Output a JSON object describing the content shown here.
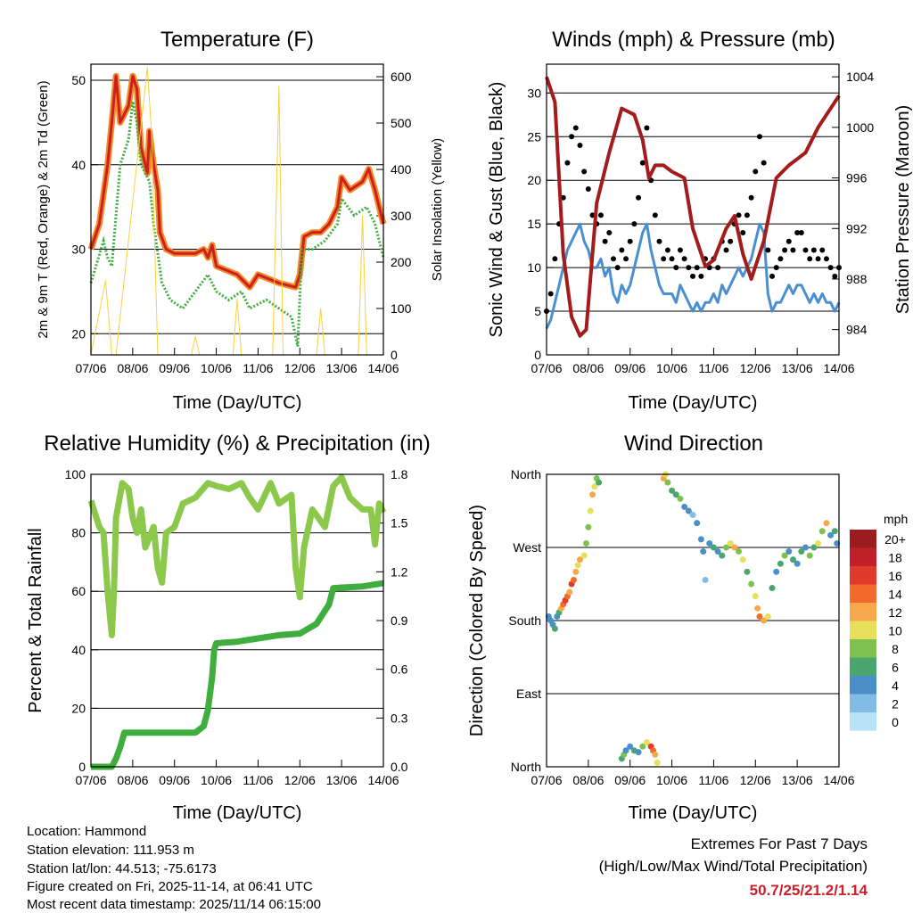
{
  "chart_data": [
    {
      "type": "line",
      "title": "Temperature (F)",
      "xlabel": "Time (Day/UTC)",
      "ylabel": "2m & 9m T (Red, Orange) & 2m Td (Green)",
      "ylabel_right": "Solar Insolation (Yellow)",
      "xticks": [
        "07/06",
        "08/06",
        "09/06",
        "10/06",
        "11/06",
        "12/06",
        "13/06",
        "14/06"
      ],
      "xlim": [
        0,
        7
      ],
      "ylim": [
        17.5,
        51.9
      ],
      "ylim_right": [
        0,
        627
      ],
      "yticks": [
        "20",
        "30",
        "40",
        "50"
      ],
      "yticks_right": [
        "0",
        "100",
        "200",
        "300",
        "400",
        "500",
        "600"
      ],
      "series": [
        {
          "name": "2m & 9m T",
          "color": "#cc1f1f",
          "halo": "#f28c28",
          "x": [
            0,
            0.2,
            0.4,
            0.5,
            0.6,
            0.7,
            0.9,
            1.0,
            1.1,
            1.2,
            1.35,
            1.4,
            1.5,
            1.6,
            1.65,
            1.8,
            2.0,
            2.5,
            2.7,
            2.8,
            2.9,
            3.0,
            3.5,
            3.8,
            4.0,
            4.5,
            4.9,
            5.0,
            5.1,
            5.3,
            5.5,
            5.7,
            5.9,
            6.0,
            6.2,
            6.5,
            6.65,
            6.8,
            7.0
          ],
          "y": [
            30,
            33,
            40,
            45,
            50.5,
            45,
            47,
            50.5,
            49,
            42,
            39,
            44,
            40,
            37,
            32,
            30,
            29.5,
            29.5,
            30,
            29,
            30.5,
            28,
            27,
            25.5,
            27,
            26,
            25.5,
            27,
            31.5,
            32,
            32,
            33,
            35,
            38.5,
            37,
            38,
            39.5,
            37,
            33
          ]
        },
        {
          "name": "2m Td",
          "color": "#3fae3f",
          "x": [
            0,
            0.3,
            0.4,
            0.5,
            0.7,
            0.9,
            1.0,
            1.1,
            1.2,
            1.4,
            1.5,
            1.7,
            1.9,
            2.2,
            2.5,
            2.8,
            3.0,
            3.3,
            3.6,
            3.8,
            4.2,
            4.5,
            4.8,
            4.95,
            5.05,
            5.3,
            5.6,
            5.9,
            6.0,
            6.3,
            6.6,
            6.8,
            7.0
          ],
          "y": [
            26,
            31,
            29,
            28,
            40,
            43,
            47.5,
            45,
            40,
            38,
            33,
            26,
            24,
            23,
            25,
            27,
            25,
            24,
            25,
            23,
            24,
            23,
            22,
            18.5,
            30,
            30,
            31,
            33,
            36,
            34,
            35,
            33,
            29
          ]
        },
        {
          "name": "Solar Insolation",
          "color": "#f7d23e",
          "axis": "right",
          "x": [
            0,
            0.35,
            0.5,
            0.6,
            1.35,
            1.45,
            1.6,
            2.4,
            2.5,
            2.6,
            3.4,
            3.5,
            3.6,
            4.35,
            4.5,
            4.6,
            5.4,
            5.5,
            5.6,
            6.4,
            6.5,
            6.6,
            7.0
          ],
          "y": [
            0,
            160,
            0,
            0,
            620,
            480,
            0,
            0,
            40,
            0,
            0,
            120,
            0,
            0,
            580,
            0,
            0,
            100,
            0,
            0,
            300,
            0,
            0
          ]
        }
      ]
    },
    {
      "type": "line",
      "title": "Winds (mph) & Pressure (mb)",
      "xlabel": "Time (Day/UTC)",
      "ylabel": "Sonic Wind & Gust (Blue, Black)",
      "ylabel_right": "Station Pressure (Maroon)",
      "xticks": [
        "07/06",
        "08/06",
        "09/06",
        "10/06",
        "11/06",
        "12/06",
        "13/06",
        "14/06"
      ],
      "xlim": [
        0,
        7
      ],
      "ylim": [
        0,
        33.3
      ],
      "ylim_right": [
        982,
        1005
      ],
      "yticks": [
        "0",
        "5",
        "10",
        "15",
        "20",
        "25",
        "30"
      ],
      "yticks_right": [
        "984",
        "988",
        "992",
        "996",
        "1000",
        "1004"
      ],
      "series": [
        {
          "name": "Sonic Wind",
          "color": "#4a90d0",
          "step": 0.1,
          "y": [
            3,
            4,
            6,
            8,
            10,
            12,
            13,
            14,
            15,
            13,
            12,
            10,
            10,
            11,
            9,
            10,
            7,
            6,
            8,
            7,
            8,
            10,
            12,
            14,
            15,
            12,
            10,
            8,
            7,
            7,
            7,
            6,
            8,
            7,
            6,
            5,
            6,
            5,
            6,
            6,
            7,
            6,
            8,
            7,
            8,
            9,
            10,
            9,
            10,
            11,
            13,
            15,
            14,
            7,
            5,
            6,
            6,
            7,
            8,
            7,
            8,
            8,
            7,
            6,
            7,
            6,
            7,
            6,
            6,
            5,
            6
          ]
        },
        {
          "name": "Gust",
          "color": "#000000",
          "step": 0.1,
          "y": [
            5,
            7,
            11,
            15,
            18,
            22,
            25,
            26,
            24,
            21,
            19,
            16,
            15,
            16,
            13,
            14,
            11,
            10,
            12,
            11,
            13,
            15,
            18,
            22,
            26,
            20,
            16,
            13,
            11,
            12,
            11,
            10,
            12,
            11,
            10,
            9,
            10,
            9,
            11,
            10,
            11,
            10,
            13,
            12,
            13,
            15,
            16,
            14,
            16,
            18,
            21,
            25,
            22,
            12,
            9,
            10,
            11,
            12,
            13,
            12,
            14,
            14,
            12,
            11,
            12,
            11,
            12,
            11,
            10,
            9,
            10
          ]
        },
        {
          "name": "Station Pressure",
          "color": "#a31b1b",
          "axis": "right",
          "x": [
            0,
            0.2,
            0.4,
            0.6,
            0.8,
            0.95,
            1.2,
            1.5,
            1.8,
            2.1,
            2.3,
            2.45,
            2.6,
            2.8,
            3.0,
            3.3,
            3.5,
            3.8,
            4.0,
            4.3,
            4.5,
            4.7,
            4.9,
            5.2,
            5.5,
            5.8,
            6.2,
            6.5,
            7.0
          ],
          "y": [
            1004,
            1002,
            990,
            985,
            983.5,
            984,
            994,
            998,
            1001.5,
            1001,
            999,
            996,
            997,
            997,
            996.5,
            996,
            992,
            989,
            989.5,
            992,
            993,
            990,
            988,
            991,
            996,
            997,
            998,
            1000,
            1002.5
          ]
        }
      ]
    },
    {
      "type": "line",
      "title": "Relative Humidity (%) & Precipitation (in)",
      "xlabel": "Time (Day/UTC)",
      "ylabel": "Percent & Total Rainfall",
      "xticks": [
        "07/06",
        "08/06",
        "09/06",
        "10/06",
        "11/06",
        "12/06",
        "13/06",
        "14/06"
      ],
      "xlim": [
        0,
        7
      ],
      "ylim": [
        0,
        100
      ],
      "ylim_right": [
        0,
        1.8
      ],
      "yticks": [
        "0",
        "20",
        "40",
        "60",
        "80",
        "100"
      ],
      "yticks_right": [
        "0.0",
        "0.3",
        "0.6",
        "0.9",
        "1.2",
        "1.5",
        "1.8"
      ],
      "series": [
        {
          "name": "Relative Humidity",
          "color": "#8cc84b",
          "x": [
            0,
            0.2,
            0.3,
            0.4,
            0.5,
            0.55,
            0.6,
            0.75,
            0.9,
            1.0,
            1.1,
            1.2,
            1.3,
            1.5,
            1.6,
            1.7,
            1.8,
            2.0,
            2.2,
            2.5,
            2.8,
            3.0,
            3.3,
            3.6,
            3.8,
            4.0,
            4.3,
            4.5,
            4.8,
            4.9,
            5.0,
            5.1,
            5.3,
            5.6,
            5.8,
            6.0,
            6.2,
            6.5,
            6.7,
            6.8,
            6.9,
            7.0
          ],
          "y": [
            91,
            82,
            80,
            60,
            45,
            60,
            85,
            97,
            95,
            85,
            80,
            88,
            75,
            82,
            68,
            63,
            80,
            82,
            90,
            92,
            97,
            96,
            95,
            97,
            92,
            88,
            97,
            90,
            93,
            68,
            58,
            75,
            88,
            82,
            96,
            99,
            92,
            88,
            88,
            76,
            90,
            87
          ]
        },
        {
          "name": "Total Precipitation",
          "color": "#3fae3f",
          "axis": "right",
          "x": [
            0,
            0.5,
            0.6,
            0.7,
            0.8,
            2.5,
            2.7,
            2.8,
            2.9,
            2.95,
            3.0,
            3.5,
            4.0,
            4.5,
            5.0,
            5.2,
            5.4,
            5.5,
            5.6,
            5.7,
            5.8,
            6.5,
            7.0
          ],
          "y": [
            0,
            0,
            0.05,
            0.12,
            0.21,
            0.21,
            0.25,
            0.35,
            0.55,
            0.72,
            0.76,
            0.77,
            0.79,
            0.81,
            0.82,
            0.85,
            0.88,
            0.92,
            0.96,
            1.0,
            1.1,
            1.11,
            1.13
          ]
        }
      ]
    },
    {
      "type": "scatter",
      "title": "Wind Direction",
      "xlabel": "Time (Day/UTC)",
      "ylabel": "Direction (Colored By Speed)",
      "xticks": [
        "07/06",
        "08/06",
        "09/06",
        "10/06",
        "11/06",
        "12/06",
        "13/06",
        "14/06"
      ],
      "xlim": [
        0,
        7
      ],
      "ylim": [
        0,
        360
      ],
      "yticks": [
        "North",
        "East",
        "South",
        "West",
        "North"
      ],
      "legend": {
        "title": "mph",
        "labels": [
          "20+",
          "18",
          "16",
          "14",
          "12",
          "10",
          "8",
          "6",
          "4",
          "2",
          "0"
        ],
        "colors": [
          "#9b1b1e",
          "#c0202a",
          "#e03a2c",
          "#f26a2c",
          "#f8a84a",
          "#e8e05a",
          "#7dc24e",
          "#4aa66e",
          "#4a8fc8",
          "#80bce6",
          "#b8e2f8"
        ]
      },
      "points": [
        [
          0.05,
          185,
          4
        ],
        [
          0.1,
          180,
          5
        ],
        [
          0.15,
          175,
          4
        ],
        [
          0.2,
          170,
          6
        ],
        [
          0.25,
          185,
          5
        ],
        [
          0.3,
          190,
          7
        ],
        [
          0.35,
          195,
          12
        ],
        [
          0.4,
          200,
          14
        ],
        [
          0.45,
          205,
          16
        ],
        [
          0.5,
          210,
          14
        ],
        [
          0.55,
          215,
          12
        ],
        [
          0.6,
          225,
          16
        ],
        [
          0.65,
          230,
          14
        ],
        [
          0.7,
          240,
          12
        ],
        [
          0.75,
          248,
          10
        ],
        [
          0.8,
          255,
          12
        ],
        [
          0.9,
          260,
          10
        ],
        [
          0.95,
          275,
          8
        ],
        [
          1.0,
          295,
          8
        ],
        [
          1.05,
          315,
          10
        ],
        [
          1.1,
          335,
          12
        ],
        [
          1.15,
          345,
          10
        ],
        [
          1.2,
          355,
          8
        ],
        [
          1.25,
          350,
          6
        ],
        [
          1.8,
          10,
          6
        ],
        [
          1.85,
          15,
          8
        ],
        [
          1.9,
          20,
          4
        ],
        [
          2.0,
          25,
          4
        ],
        [
          2.1,
          20,
          6
        ],
        [
          2.2,
          18,
          4
        ],
        [
          2.3,
          25,
          8
        ],
        [
          2.4,
          30,
          10
        ],
        [
          2.5,
          25,
          16
        ],
        [
          2.55,
          20,
          14
        ],
        [
          2.6,
          15,
          12
        ],
        [
          2.65,
          5,
          10
        ],
        [
          2.8,
          355,
          12
        ],
        [
          2.85,
          360,
          10
        ],
        [
          2.9,
          350,
          8
        ],
        [
          3.0,
          340,
          6
        ],
        [
          3.1,
          335,
          6
        ],
        [
          3.2,
          330,
          8
        ],
        [
          3.3,
          320,
          4
        ],
        [
          3.4,
          315,
          4
        ],
        [
          3.5,
          310,
          2
        ],
        [
          3.6,
          300,
          4
        ],
        [
          3.7,
          280,
          4
        ],
        [
          3.75,
          265,
          4
        ],
        [
          3.8,
          230,
          2
        ],
        [
          3.9,
          275,
          4
        ],
        [
          4.0,
          270,
          6
        ],
        [
          4.1,
          265,
          4
        ],
        [
          4.2,
          260,
          6
        ],
        [
          4.3,
          270,
          8
        ],
        [
          4.4,
          275,
          10
        ],
        [
          4.5,
          270,
          12
        ],
        [
          4.6,
          265,
          8
        ],
        [
          4.7,
          255,
          10
        ],
        [
          4.8,
          240,
          6
        ],
        [
          4.9,
          225,
          8
        ],
        [
          5.0,
          210,
          10
        ],
        [
          5.05,
          195,
          12
        ],
        [
          5.1,
          185,
          14
        ],
        [
          5.2,
          180,
          12
        ],
        [
          5.3,
          185,
          10
        ],
        [
          5.4,
          220,
          6
        ],
        [
          5.5,
          240,
          4
        ],
        [
          5.6,
          250,
          6
        ],
        [
          5.7,
          260,
          8
        ],
        [
          5.8,
          265,
          4
        ],
        [
          5.9,
          255,
          6
        ],
        [
          6.0,
          250,
          4
        ],
        [
          6.1,
          265,
          6
        ],
        [
          6.2,
          270,
          4
        ],
        [
          6.3,
          260,
          8
        ],
        [
          6.4,
          270,
          6
        ],
        [
          6.5,
          275,
          10
        ],
        [
          6.6,
          290,
          8
        ],
        [
          6.7,
          300,
          12
        ],
        [
          6.8,
          285,
          4
        ],
        [
          6.9,
          290,
          6
        ],
        [
          6.95,
          275,
          4
        ]
      ]
    }
  ],
  "info": {
    "location": "Location: Hammond",
    "elevation": "Station elevation: 111.953 m",
    "latlon": "Station lat/lon: 44.513; -75.6173",
    "created": "Figure created on Fri, 2025-11-14, at 06:41 UTC",
    "recent": "Most recent data timestamp: 2025/11/14 06:15:00"
  },
  "extremes": {
    "title": "Extremes For Past 7 Days",
    "subtitle": "(High/Low/Max Wind/Total Precipitation)",
    "values": "50.7/25/21.2/1.14",
    "color": "#cc1f2a"
  }
}
